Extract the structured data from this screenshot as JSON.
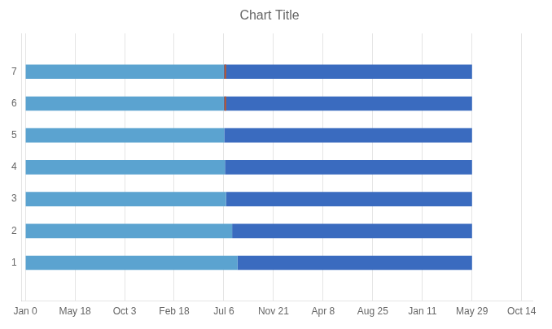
{
  "chart_data": {
    "type": "bar",
    "orientation": "horizontal",
    "stacked": true,
    "title": "Chart Title",
    "y": [
      1,
      2,
      3,
      4,
      5,
      6,
      7
    ],
    "series": [
      {
        "color": "#5ba3d0",
        "values": [
          590,
          575,
          558,
          555,
          553,
          552,
          552
        ]
      },
      {
        "color": "#3a6bbf",
        "values": [
          652,
          667,
          684,
          687,
          689,
          690,
          690
        ]
      }
    ],
    "marker_line": {
      "x": 556,
      "rows": [
        6,
        7
      ],
      "color": "#c05828"
    },
    "xlim": [
      -10,
      1410
    ],
    "xticks": [
      {
        "value": 0,
        "label": "Jan 0"
      },
      {
        "value": 138,
        "label": "May 18"
      },
      {
        "value": 276,
        "label": "Oct 3"
      },
      {
        "value": 414,
        "label": "Feb 18"
      },
      {
        "value": 552,
        "label": "Jul 6"
      },
      {
        "value": 690,
        "label": "Nov 21"
      },
      {
        "value": 828,
        "label": "Apr 8"
      },
      {
        "value": 966,
        "label": "Aug 25"
      },
      {
        "value": 1104,
        "label": "Jan 11"
      },
      {
        "value": 1242,
        "label": "May 29"
      },
      {
        "value": 1380,
        "label": "Oct 14"
      }
    ],
    "ylim": [
      0.4,
      7.6
    ],
    "yticks": [
      1,
      2,
      3,
      4,
      5,
      6,
      7
    ],
    "grid": "x"
  }
}
